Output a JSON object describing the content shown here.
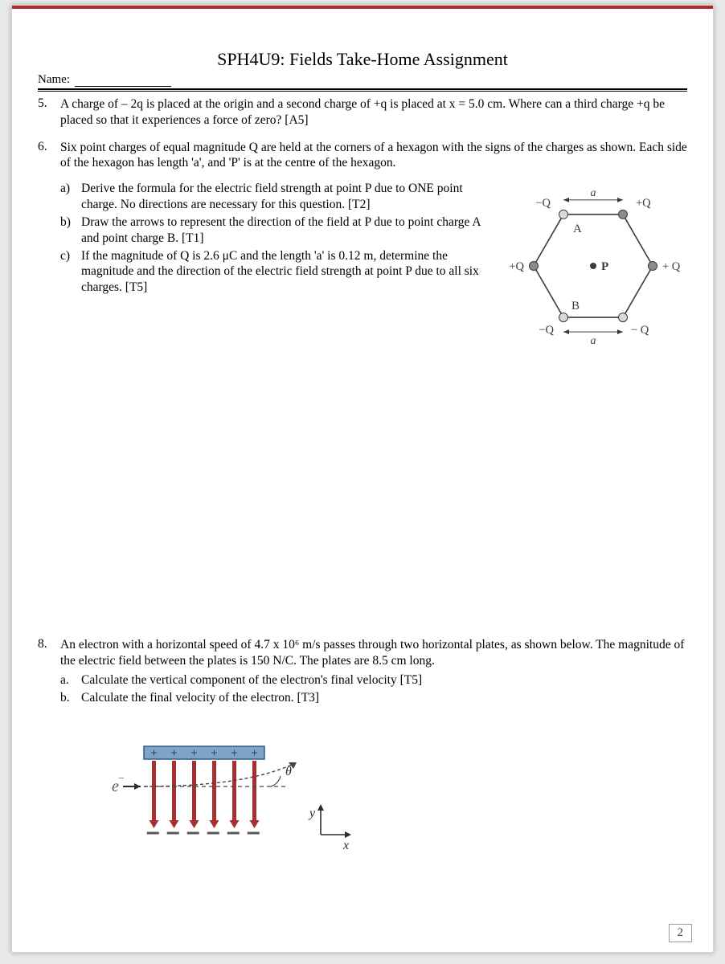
{
  "header": {
    "title": "SPH4U9: Fields Take-Home Assignment",
    "name_label": "Name:"
  },
  "questions": {
    "q5": {
      "num": "5.",
      "text": "A charge of – 2q is placed at the origin and a second charge of +q is placed at x = 5.0 cm. Where can a third charge +q be placed so that it experiences a force of zero? [A5]"
    },
    "q6": {
      "num": "6.",
      "intro": "Six point charges of equal magnitude Q are held at the corners of a hexagon with the signs of the charges as shown. Each side of the hexagon has length 'a', and 'P' is at the centre of the hexagon.",
      "a_num": "a)",
      "a": "Derive the formula for the electric field strength at point P due to ONE point charge. No directions are necessary for this question. [T2]",
      "b_num": "b)",
      "b": "Draw the arrows to represent the direction of the field at P due to point charge A and point charge B. [T1]",
      "c_num": "c)",
      "c": "If the magnitude of Q is 2.6 μC and the length 'a' is 0.12 m, determine the magnitude and the direction of the electric field strength at point P due to all six charges. [T5]"
    },
    "q8": {
      "num": "8.",
      "intro": "An electron with a horizontal speed of 4.7 x 10⁶ m/s passes through two horizontal plates, as shown below. The magnitude of the electric field between the plates is 150 N/C. The plates are 8.5 cm long.",
      "a_num": "a.",
      "a": "Calculate the vertical component of the electron's final velocity [T5]",
      "b_num": "b.",
      "b": "Calculate the final velocity of the electron. [T3]"
    }
  },
  "hexagon": {
    "vertices": [
      {
        "id": "top_left",
        "label": "−Q",
        "sign": "neg",
        "mark": "A"
      },
      {
        "id": "top_right",
        "label": "+Q",
        "sign": "pos"
      },
      {
        "id": "right",
        "label": "+ Q",
        "sign": "pos"
      },
      {
        "id": "bot_right",
        "label": "− Q",
        "sign": "neg"
      },
      {
        "id": "bot_left",
        "label": "−Q",
        "sign": "neg",
        "mark": "B"
      },
      {
        "id": "left",
        "label": "+Q",
        "sign": "pos"
      }
    ],
    "center_label": "P",
    "edge_label": "a",
    "colors": {
      "pos_fill": "#8b8b8b",
      "neg_fill": "#d9d9d9",
      "line": "#3a3a3a",
      "text": "#3a3a3a"
    },
    "node_radius": 5.5,
    "line_width": 1.6
  },
  "fig8": {
    "colors": {
      "plate_top_fill": "#7da4c4",
      "plate_top_stroke": "#2e5d86",
      "plate_bot_stroke": "#5a5a5a",
      "arrow_fill": "#a62f2f",
      "axis": "#2d2d2d",
      "electron_text": "#5a5a5a",
      "plus_text": "#234e76",
      "trajectory": "#444"
    },
    "labels": {
      "electron": "e",
      "theta": "θ",
      "x": "x",
      "y": "y"
    },
    "plus_count": 6,
    "bottom_dash_count": 6,
    "field_arrow_count": 6
  },
  "page_number": "2"
}
